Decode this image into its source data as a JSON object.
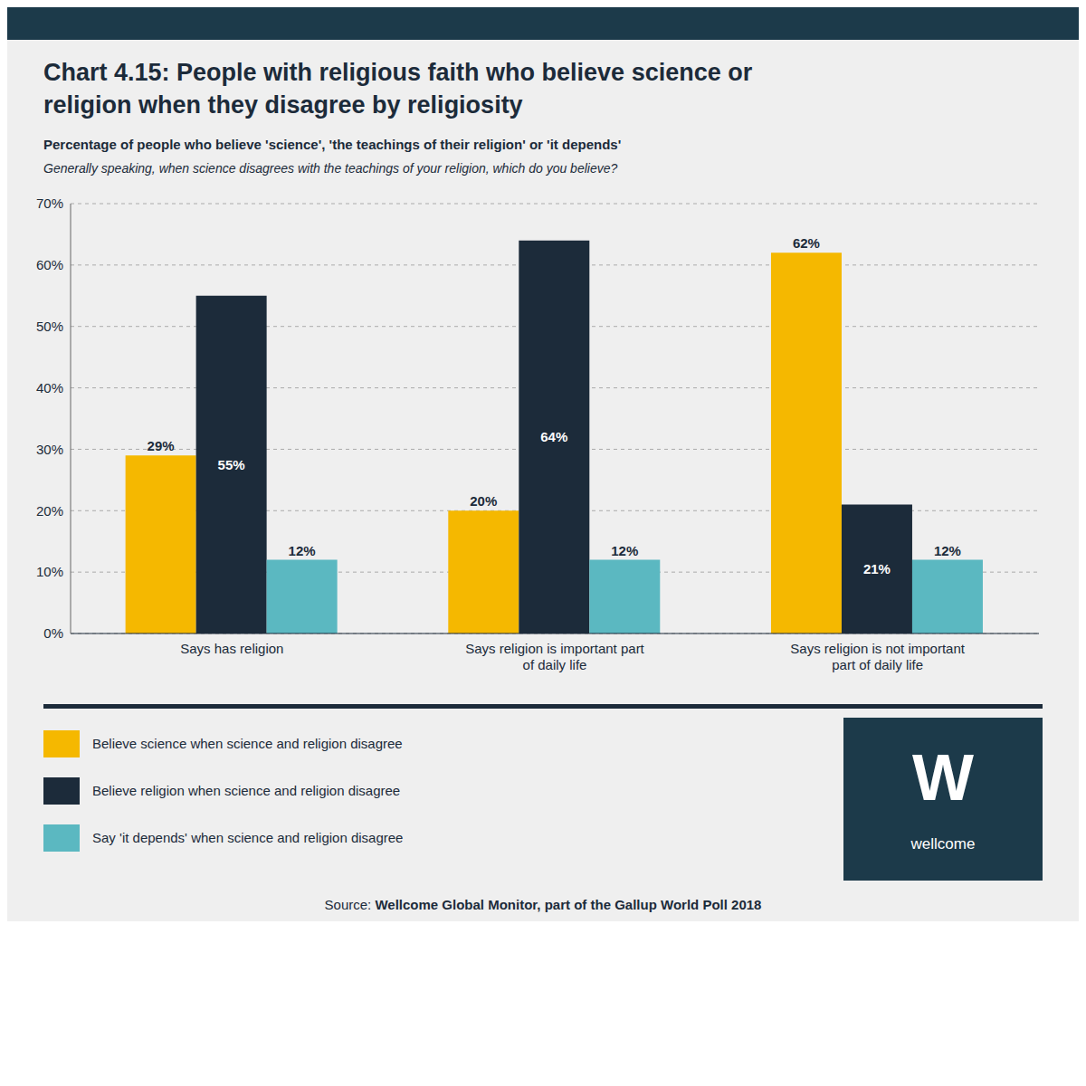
{
  "chart_data": {
    "type": "bar",
    "title": "Chart 4.15: People with religious faith who believe science or\nreligion when they disagree by religiosity",
    "subtitle": "Percentage of people who believe 'science', 'the teachings of their religion' or 'it depends'",
    "annotations": [
      "Generally speaking, when science disagrees with the teachings of your religion, which do you believe?",
      "W",
      "wellcome",
      "Source: ",
      "Wellcome Global Monitor, part of the Gallup World Poll 2018"
    ],
    "categories": [
      "Says has religion",
      "Says religion is important part\nof daily life",
      "Says religion is not important\npart of daily life"
    ],
    "series": [
      {
        "name": "Believe science when science and religion disagree",
        "color": "#F5B800",
        "values": [
          29,
          20,
          62
        ],
        "value_labels": [
          "29%",
          "20%",
          "62%"
        ]
      },
      {
        "name": "Believe religion when science and religion disagree",
        "color": "#1C2B3A",
        "values": [
          55,
          64,
          21
        ],
        "value_labels": [
          "55%",
          "64%",
          "21%"
        ]
      },
      {
        "name": "Say 'it depends' when science and religion disagree",
        "color": "#5BB8C1",
        "values": [
          12,
          12,
          12
        ],
        "value_labels": [
          "12%",
          "12%",
          "12%"
        ]
      }
    ],
    "ylim": [
      0,
      70
    ],
    "yticks": [
      {
        "value": 0,
        "label": "0%"
      },
      {
        "value": 10,
        "label": "10%"
      },
      {
        "value": 20,
        "label": "20%"
      },
      {
        "value": 30,
        "label": "30%"
      },
      {
        "value": 40,
        "label": "40%"
      },
      {
        "value": 50,
        "label": "50%"
      },
      {
        "value": 60,
        "label": "60%"
      },
      {
        "value": 70,
        "label": "70%"
      }
    ],
    "grid": true,
    "data_labels": true,
    "legend": "bottom"
  }
}
